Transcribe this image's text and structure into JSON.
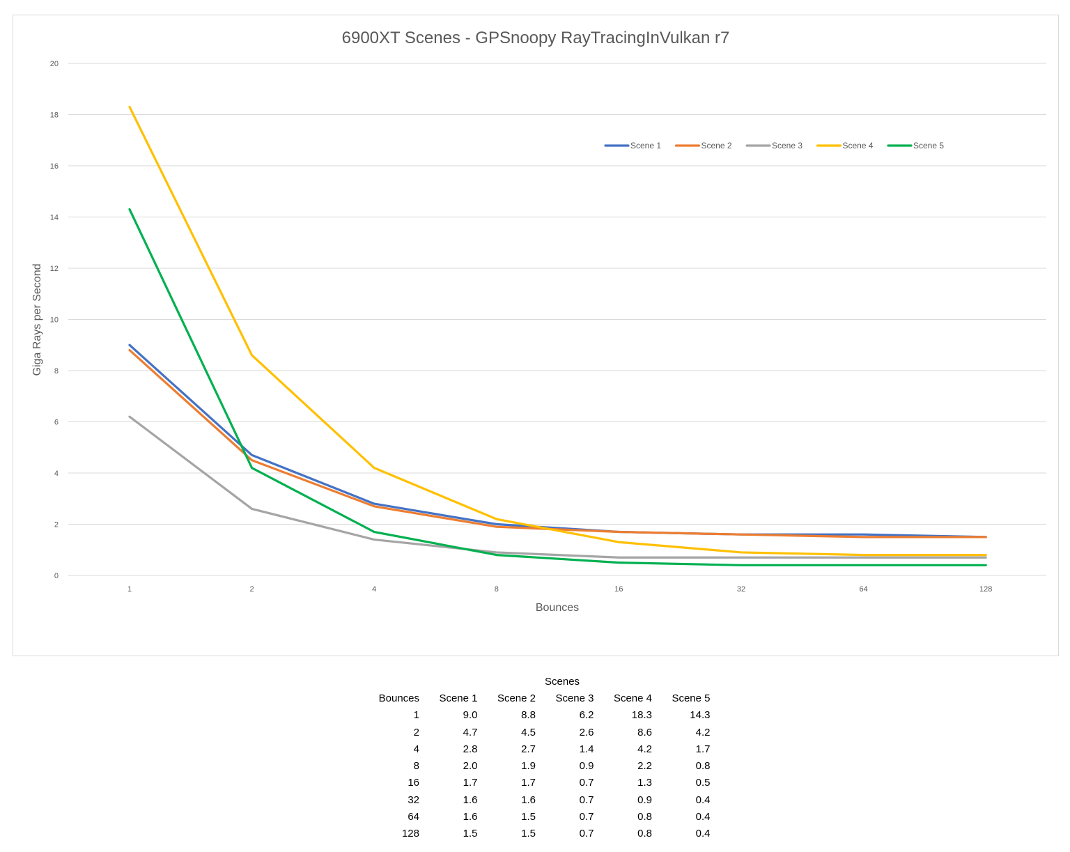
{
  "chart_data": {
    "type": "line",
    "title": "6900XT Scenes - GPSnoopy RayTracingInVulkan r7",
    "xlabel": "Bounces",
    "ylabel": "Giga Rays per Second",
    "categories": [
      "1",
      "2",
      "4",
      "8",
      "16",
      "32",
      "64",
      "128"
    ],
    "ylim": [
      0,
      20
    ],
    "yticks": [
      "0",
      "2",
      "4",
      "6",
      "8",
      "10",
      "12",
      "14",
      "16",
      "18",
      "20"
    ],
    "grid": true,
    "legend_position": "top-right",
    "series": [
      {
        "name": "Scene 1",
        "color": "#4472c4",
        "values": [
          9.0,
          4.7,
          2.8,
          2.0,
          1.7,
          1.6,
          1.6,
          1.5
        ]
      },
      {
        "name": "Scene 2",
        "color": "#ed7d31",
        "values": [
          8.8,
          4.5,
          2.7,
          1.9,
          1.7,
          1.6,
          1.5,
          1.5
        ]
      },
      {
        "name": "Scene 3",
        "color": "#a5a5a5",
        "values": [
          6.2,
          2.6,
          1.4,
          0.9,
          0.7,
          0.7,
          0.7,
          0.7
        ]
      },
      {
        "name": "Scene 4",
        "color": "#ffc000",
        "values": [
          18.3,
          8.6,
          4.2,
          2.2,
          1.3,
          0.9,
          0.8,
          0.8
        ]
      },
      {
        "name": "Scene 5",
        "color": "#00b050",
        "values": [
          14.3,
          4.2,
          1.7,
          0.8,
          0.5,
          0.4,
          0.4,
          0.4
        ]
      }
    ]
  },
  "table": {
    "caption": "Scenes",
    "header": [
      "Bounces",
      "Scene 1",
      "Scene 2",
      "Scene 3",
      "Scene 4",
      "Scene 5"
    ],
    "rows": [
      [
        "1",
        "9.0",
        "8.8",
        "6.2",
        "18.3",
        "14.3"
      ],
      [
        "2",
        "4.7",
        "4.5",
        "2.6",
        "8.6",
        "4.2"
      ],
      [
        "4",
        "2.8",
        "2.7",
        "1.4",
        "4.2",
        "1.7"
      ],
      [
        "8",
        "2.0",
        "1.9",
        "0.9",
        "2.2",
        "0.8"
      ],
      [
        "16",
        "1.7",
        "1.7",
        "0.7",
        "1.3",
        "0.5"
      ],
      [
        "32",
        "1.6",
        "1.6",
        "0.7",
        "0.9",
        "0.4"
      ],
      [
        "64",
        "1.6",
        "1.5",
        "0.7",
        "0.8",
        "0.4"
      ],
      [
        "128",
        "1.5",
        "1.5",
        "0.7",
        "0.8",
        "0.4"
      ]
    ]
  }
}
